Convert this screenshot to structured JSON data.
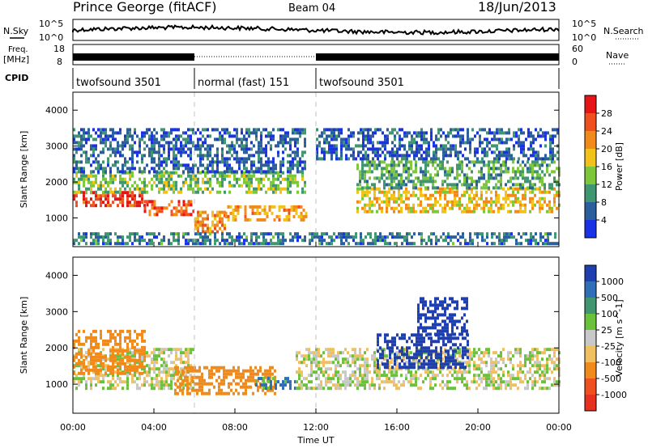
{
  "header": {
    "station": "Prince George (fitACF)",
    "beam": "Beam 04",
    "date": "18/Jun/2013"
  },
  "side_labels": {
    "nsky": "N.Sky",
    "nsearch": "N.Search",
    "freq": "Freq.",
    "freq_unit": "[MHz]",
    "nave": "Nave",
    "cpid": "CPID"
  },
  "noise_axis": {
    "top": "10^5",
    "bottom": "10^0",
    "right_top": "10^5",
    "right_bottom": "10^0"
  },
  "freq_axis": {
    "ticks": [
      "18",
      "8"
    ],
    "right_ticks": [
      "60",
      "0"
    ]
  },
  "cpid_segments": [
    {
      "label": "twofsound 3501",
      "start_h": 0,
      "end_h": 6
    },
    {
      "label": "normal (fast) 151",
      "start_h": 6,
      "end_h": 12
    },
    {
      "label": "twofsound 3501",
      "start_h": 12,
      "end_h": 24
    }
  ],
  "chart_data": [
    {
      "type": "heatmap",
      "title": "",
      "xlabel": "",
      "ylabel": "Slant Range [km]",
      "x_range_h": [
        0,
        24
      ],
      "ylim": [
        200,
        4500
      ],
      "y_ticks": [
        "1000",
        "2000",
        "3000",
        "4000"
      ],
      "colorbar": {
        "label": "Power [dB]",
        "ticks": [
          "4",
          "8",
          "12",
          "16",
          "20",
          "24",
          "28"
        ],
        "range": [
          0,
          30
        ]
      },
      "bands": [
        {
          "h0": 0.0,
          "h1": 3.5,
          "r0": 1300,
          "r1": 1750,
          "value": 28
        },
        {
          "h0": 3.5,
          "h1": 6.0,
          "r0": 1050,
          "r1": 1500,
          "value": 24
        },
        {
          "h0": 6.0,
          "h1": 7.5,
          "r0": 600,
          "r1": 1200,
          "value": 22
        },
        {
          "h0": 7.5,
          "h1": 11.5,
          "r0": 950,
          "r1": 1350,
          "value": 20
        },
        {
          "h0": 0.0,
          "h1": 11.5,
          "r0": 1750,
          "r1": 2300,
          "value": 12
        },
        {
          "h0": 0.0,
          "h1": 11.5,
          "r0": 2300,
          "r1": 3500,
          "value": 4
        },
        {
          "h0": 14.0,
          "h1": 24.0,
          "r0": 1150,
          "r1": 1850,
          "value": 18
        },
        {
          "h0": 14.0,
          "h1": 24.0,
          "r0": 1850,
          "r1": 2600,
          "value": 10
        },
        {
          "h0": 12.0,
          "h1": 24.0,
          "r0": 2600,
          "r1": 3500,
          "value": 4
        },
        {
          "h0": 0.0,
          "h1": 24.0,
          "r0": 250,
          "r1": 600,
          "value": 6
        }
      ]
    },
    {
      "type": "heatmap",
      "title": "",
      "xlabel": "Time UT",
      "ylabel": "Slant Range [km]",
      "x_range_h": [
        0,
        24
      ],
      "x_ticks": [
        "00:00",
        "04:00",
        "08:00",
        "12:00",
        "16:00",
        "20:00",
        "00:00"
      ],
      "ylim": [
        200,
        4500
      ],
      "y_ticks": [
        "1000",
        "2000",
        "3000",
        "4000"
      ],
      "colorbar": {
        "label": "Velocity [m s^-1]",
        "ticks": [
          "1000",
          "500",
          "100",
          "25",
          "-25",
          "-100",
          "-500",
          "-1000"
        ]
      },
      "bands": [
        {
          "h0": 0.0,
          "h1": 6.0,
          "r0": 900,
          "r1": 2000,
          "value": 0
        },
        {
          "h0": 0.0,
          "h1": 3.5,
          "r0": 1300,
          "r1": 2500,
          "value": -300
        },
        {
          "h0": 5.0,
          "h1": 10.0,
          "r0": 700,
          "r1": 1500,
          "value": -400
        },
        {
          "h0": 9.0,
          "h1": 11.0,
          "r0": 900,
          "r1": 1200,
          "value": 150
        },
        {
          "h0": 11.0,
          "h1": 24.0,
          "r0": 900,
          "r1": 2000,
          "value": 0
        },
        {
          "h0": 15.0,
          "h1": 19.5,
          "r0": 1500,
          "r1": 2400,
          "value": 700
        },
        {
          "h0": 17.0,
          "h1": 19.5,
          "r0": 2400,
          "r1": 3400,
          "value": 800
        }
      ]
    }
  ]
}
